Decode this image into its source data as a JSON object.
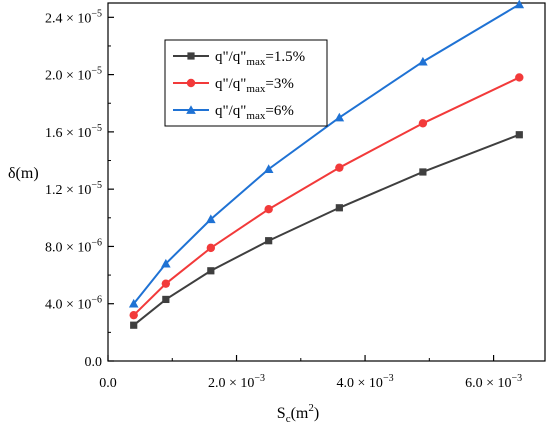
{
  "chart_data": {
    "type": "line",
    "title": "",
    "xlabel": {
      "main": "S",
      "sub": "c",
      "unit": "(m",
      "sup": "2",
      "close": ")"
    },
    "ylabel": "δ(m)",
    "xlim": [
      0,
      0.0068
    ],
    "ylim": [
      0,
      2.5e-05
    ],
    "grid": false,
    "legend_position": "top-left",
    "x_ticks": [
      {
        "value": 0,
        "mantissa": "0.0",
        "exp": ""
      },
      {
        "value": 0.002,
        "mantissa": "2.0 × 10",
        "exp": "−3"
      },
      {
        "value": 0.004,
        "mantissa": "4.0 × 10",
        "exp": "−3"
      },
      {
        "value": 0.006,
        "mantissa": "6.0 × 10",
        "exp": "−3"
      }
    ],
    "y_ticks": [
      {
        "value": 0,
        "mantissa": "0.0",
        "exp": ""
      },
      {
        "value": 4e-06,
        "mantissa": "4.0 × 10",
        "exp": "−6"
      },
      {
        "value": 8e-06,
        "mantissa": "8.0 × 10",
        "exp": "−6"
      },
      {
        "value": 1.2e-05,
        "mantissa": "1.2 × 10",
        "exp": "−5"
      },
      {
        "value": 1.6e-05,
        "mantissa": "1.6 × 10",
        "exp": "−5"
      },
      {
        "value": 2e-05,
        "mantissa": "2.0 × 10",
        "exp": "−5"
      },
      {
        "value": 2.4e-05,
        "mantissa": "2.4 × 10",
        "exp": "−5"
      }
    ],
    "x": [
      0.0004,
      0.0009,
      0.0016,
      0.0025,
      0.0036,
      0.0049,
      0.0064
    ],
    "series": [
      {
        "name": "q\"/q\"max=1.5%",
        "label_main": "q\"/q\"",
        "label_sub": "max",
        "label_tail": "=1.5%",
        "color": "#3f3f3f",
        "marker": "square",
        "values": [
          2.5e-06,
          4.3e-06,
          6.3e-06,
          8.4e-06,
          1.07e-05,
          1.32e-05,
          1.58e-05
        ]
      },
      {
        "name": "q\"/q\"max=3%",
        "label_main": "q\"/q\"",
        "label_sub": "max",
        "label_tail": "=3%",
        "color": "#f23a3a",
        "marker": "circle",
        "values": [
          3.2e-06,
          5.4e-06,
          7.9e-06,
          1.06e-05,
          1.35e-05,
          1.66e-05,
          1.98e-05
        ]
      },
      {
        "name": "q\"/q\"max=6%",
        "label_main": "q\"/q\"",
        "label_sub": "max",
        "label_tail": "=6%",
        "color": "#1f72d4",
        "marker": "triangle",
        "values": [
          4e-06,
          6.8e-06,
          9.9e-06,
          1.34e-05,
          1.7e-05,
          2.09e-05,
          2.49e-05
        ]
      }
    ]
  }
}
